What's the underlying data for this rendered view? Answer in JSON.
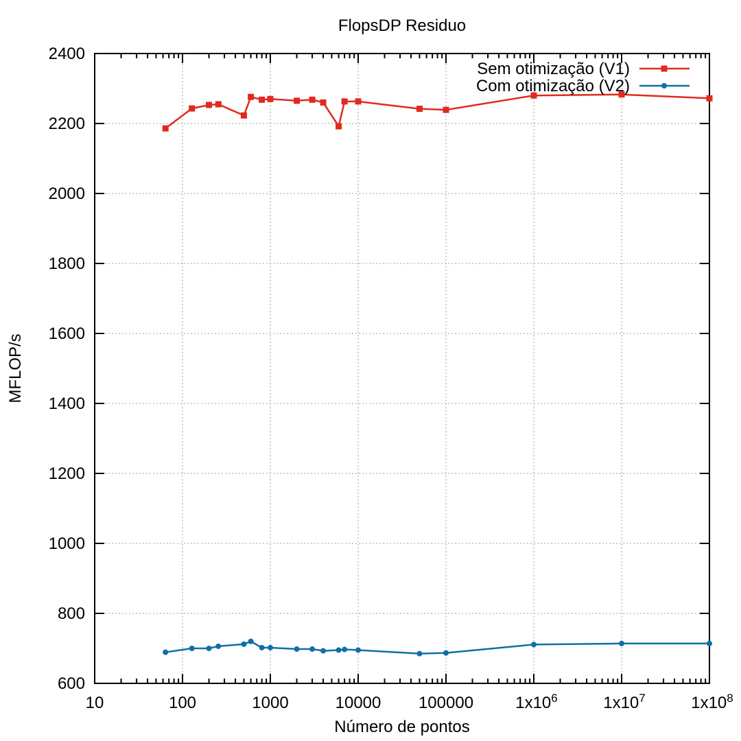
{
  "chart_data": {
    "type": "line",
    "title": "FlopsDP Residuo",
    "xlabel": "Número de pontos",
    "ylabel": "MFLOP/s",
    "xscale": "log",
    "xlim": [
      10,
      100000000
    ],
    "ylim": [
      600,
      2400
    ],
    "grid": true,
    "legend_position": "top-right",
    "x_ticks": [
      {
        "value": 10,
        "label": "10"
      },
      {
        "value": 100,
        "label": "100"
      },
      {
        "value": 1000,
        "label": "1000"
      },
      {
        "value": 10000,
        "label": "10000"
      },
      {
        "value": 100000,
        "label": "100000"
      },
      {
        "value": 1000000,
        "label": "1x10",
        "exp": "6"
      },
      {
        "value": 10000000,
        "label": "1x10",
        "exp": "7"
      },
      {
        "value": 100000000,
        "label": "1x10",
        "exp": "8"
      }
    ],
    "y_ticks": [
      600,
      800,
      1000,
      1200,
      1400,
      1600,
      1800,
      2000,
      2200,
      2400
    ],
    "series": [
      {
        "name": "Sem otimização (V1)",
        "color": "#e02a1f",
        "marker": "square",
        "points": [
          [
            64,
            2186
          ],
          [
            128,
            2243
          ],
          [
            200,
            2253
          ],
          [
            256,
            2255
          ],
          [
            500,
            2223
          ],
          [
            600,
            2276
          ],
          [
            800,
            2268
          ],
          [
            1000,
            2270
          ],
          [
            2000,
            2265
          ],
          [
            3000,
            2268
          ],
          [
            4000,
            2260
          ],
          [
            6000,
            2192
          ],
          [
            7000,
            2263
          ],
          [
            10000,
            2263
          ],
          [
            50000,
            2242
          ],
          [
            100000,
            2239
          ],
          [
            1000000,
            2280
          ],
          [
            10000000,
            2283
          ],
          [
            100000000,
            2272
          ]
        ]
      },
      {
        "name": "Com otimização (V2)",
        "color": "#0f6fa6",
        "marker": "circle",
        "points": [
          [
            64,
            689
          ],
          [
            128,
            700
          ],
          [
            200,
            700
          ],
          [
            256,
            706
          ],
          [
            500,
            712
          ],
          [
            600,
            720
          ],
          [
            800,
            702
          ],
          [
            1000,
            702
          ],
          [
            2000,
            698
          ],
          [
            3000,
            698
          ],
          [
            4000,
            693
          ],
          [
            6000,
            695
          ],
          [
            7000,
            697
          ],
          [
            10000,
            695
          ],
          [
            50000,
            685
          ],
          [
            100000,
            687
          ],
          [
            1000000,
            711
          ],
          [
            10000000,
            714
          ],
          [
            100000000,
            714
          ]
        ]
      }
    ]
  }
}
